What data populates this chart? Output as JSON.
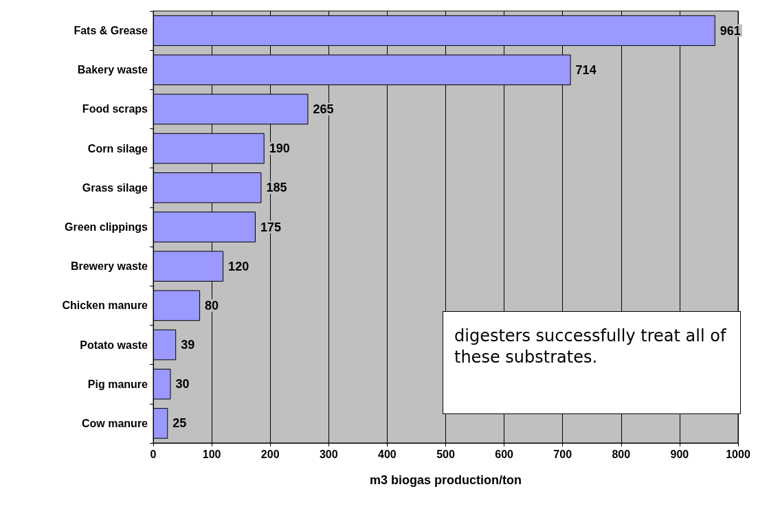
{
  "chart_data": {
    "type": "bar",
    "orientation": "horizontal",
    "xlabel": "m3 biogas production/ton",
    "categories": [
      "Fats & Grease",
      "Bakery waste",
      "Food scraps",
      "Corn silage",
      "Grass silage",
      "Green clippings",
      "Brewery waste",
      "Chicken manure",
      "Potato waste",
      "Pig manure",
      "Cow manure"
    ],
    "values": [
      961,
      714,
      265,
      190,
      185,
      175,
      120,
      80,
      39,
      30,
      25
    ],
    "color": "#9999ff",
    "xlim": [
      0,
      1000
    ],
    "xticks": [
      0,
      100,
      200,
      300,
      400,
      500,
      600,
      700,
      800,
      900,
      {
        "value": 1000,
        "label": "1000"
      }
    ],
    "grid": "x",
    "data_labels": true,
    "annotations": [
      "digesters successfully treat all of these substrates."
    ]
  }
}
